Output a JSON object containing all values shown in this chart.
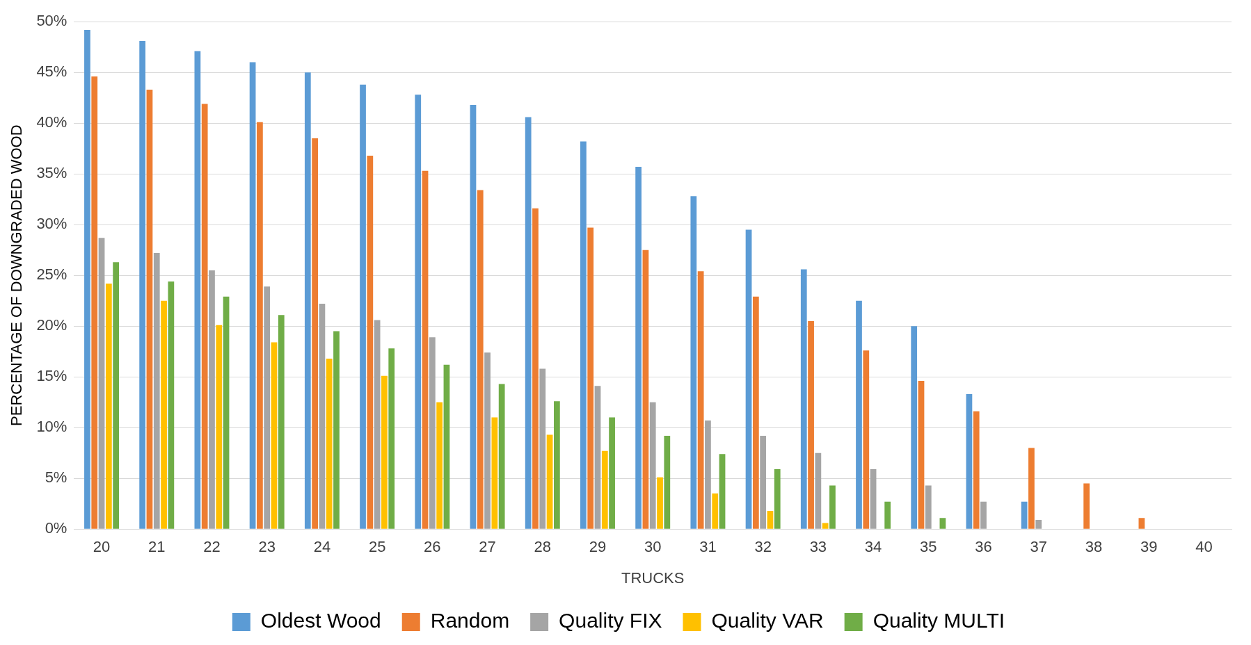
{
  "chart_data": {
    "type": "bar",
    "xlabel": "TRUCKS",
    "ylabel": "PERCENTAGE OF DOWNGRADED WOOD",
    "categories": [
      "20",
      "21",
      "22",
      "23",
      "24",
      "25",
      "26",
      "27",
      "28",
      "29",
      "30",
      "31",
      "32",
      "33",
      "34",
      "35",
      "36",
      "37",
      "38",
      "39",
      "40"
    ],
    "series": [
      {
        "name": "Oldest Wood",
        "color": "#5b9bd5",
        "values": [
          49.2,
          48.1,
          47.1,
          46.0,
          45.0,
          43.8,
          42.8,
          41.8,
          40.6,
          38.2,
          35.7,
          32.8,
          29.5,
          25.6,
          22.5,
          20.0,
          13.3,
          2.7,
          0,
          0,
          0
        ]
      },
      {
        "name": "Random",
        "color": "#ed7d31",
        "values": [
          44.6,
          43.3,
          41.9,
          40.1,
          38.5,
          36.8,
          35.3,
          33.4,
          31.6,
          29.7,
          27.5,
          25.4,
          22.9,
          20.5,
          17.6,
          14.6,
          11.6,
          8.0,
          4.5,
          1.1,
          0
        ]
      },
      {
        "name": "Quality FIX",
        "color": "#a5a5a5",
        "values": [
          28.7,
          27.2,
          25.5,
          23.9,
          22.2,
          20.6,
          18.9,
          17.4,
          15.8,
          14.1,
          12.5,
          10.7,
          9.2,
          7.5,
          5.9,
          4.3,
          2.7,
          0.9,
          0,
          0,
          0
        ]
      },
      {
        "name": "Quality VAR",
        "color": "#ffc000",
        "values": [
          24.2,
          22.5,
          20.1,
          18.4,
          16.8,
          15.1,
          12.5,
          11.0,
          9.3,
          7.7,
          5.1,
          3.5,
          1.8,
          0.6,
          0,
          0,
          0,
          0,
          0,
          0,
          0
        ]
      },
      {
        "name": "Quality MULTI",
        "color": "#70ad47",
        "values": [
          26.3,
          24.4,
          22.9,
          21.1,
          19.5,
          17.8,
          16.2,
          14.3,
          12.6,
          11.0,
          9.2,
          7.4,
          5.9,
          4.3,
          2.7,
          1.1,
          0,
          0,
          0,
          0,
          0
        ]
      }
    ],
    "ylim": [
      0,
      50
    ],
    "yticks": [
      {
        "value": 0,
        "label": "0%"
      },
      {
        "value": 5,
        "label": "5%"
      },
      {
        "value": 10,
        "label": "10%"
      },
      {
        "value": 15,
        "label": "15%"
      },
      {
        "value": 20,
        "label": "20%"
      },
      {
        "value": 25,
        "label": "25%"
      },
      {
        "value": 30,
        "label": "30%"
      },
      {
        "value": 35,
        "label": "35%"
      },
      {
        "value": 40,
        "label": "40%"
      },
      {
        "value": 45,
        "label": "45%"
      },
      {
        "value": 50,
        "label": "50%"
      }
    ],
    "grid": "y",
    "legend": "bottom"
  }
}
